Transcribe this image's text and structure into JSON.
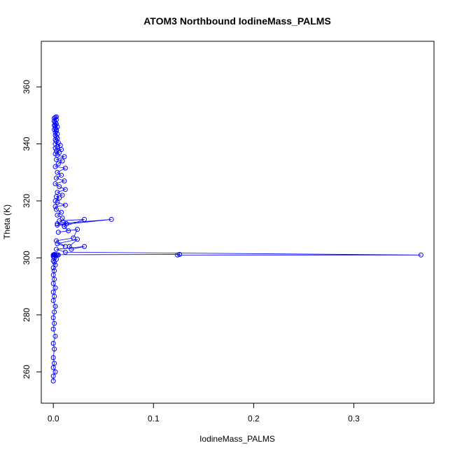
{
  "chart_data": {
    "type": "scatter",
    "title": "ATOM3 Northbound IodineMass_PALMS",
    "xlabel": "IodineMass_PALMS",
    "ylabel": "Theta (K)",
    "xlim": [
      -0.012,
      0.38
    ],
    "ylim": [
      249,
      376
    ],
    "x_ticks": [
      0,
      0.1,
      0.2,
      0.3
    ],
    "x_tick_labels": [
      "0.0",
      "0.1",
      "0.2",
      "0.3"
    ],
    "y_ticks": [
      260,
      280,
      300,
      320,
      340,
      360
    ],
    "y_tick_labels": [
      "260",
      "280",
      "300",
      "320",
      "340",
      "360"
    ],
    "grid": false,
    "legend": "none",
    "marker": "open-circle",
    "connected": true,
    "color": "#0000ff",
    "series": [
      {
        "x": [
          0.0,
          0.0,
          0.002,
          0.0,
          0.001,
          0.0,
          0.001,
          0.0,
          0.002,
          0.0,
          0.001,
          0.0,
          0.001,
          0.002,
          0.0,
          0.001,
          0.0,
          0.002,
          0.0,
          0.001,
          0.0,
          0.001,
          0.0,
          0.002,
          0.001,
          0.0,
          0.003,
          0.001,
          0.0,
          0.002,
          0.004,
          0.001,
          0.0,
          0.002,
          0.005,
          0.001,
          0.0,
          0.003,
          0.126,
          0.124,
          0.367,
          0.012,
          0.003,
          0.031,
          0.018,
          0.016,
          0.024,
          0.004,
          0.012,
          0.003,
          0.02,
          0.024,
          0.005,
          0.015,
          0.011,
          0.013,
          0.004,
          0.058,
          0.004,
          0.011,
          0.031,
          0.006,
          0.013,
          0.009,
          0.004,
          0.008,
          0.003,
          0.002,
          0.012,
          0.004,
          0.002,
          0.006,
          0.003,
          0.009,
          0.004,
          0.012,
          0.006,
          0.002,
          0.011,
          0.003,
          0.008,
          0.004,
          0.012,
          0.002,
          0.005,
          0.009,
          0.003,
          0.011,
          0.004,
          0.002,
          0.006,
          0.003,
          0.008,
          0.002,
          0.004,
          0.007,
          0.002,
          0.005,
          0.003,
          0.002,
          0.004,
          0.003,
          0.002,
          0.004,
          0.002,
          0.003,
          0.001,
          0.002,
          0.004,
          0.001,
          0.003,
          0.002,
          0.001,
          0.003,
          0.001,
          0.002,
          0.003,
          0.001,
          0.002,
          0.003
        ],
        "y": [
          256.8,
          258.5,
          260.0,
          261.5,
          263.0,
          265.0,
          268.0,
          270.0,
          272.5,
          275.0,
          277.0,
          279.0,
          281.0,
          283.0,
          285.0,
          286.5,
          288.0,
          289.5,
          291.0,
          292.5,
          294.0,
          295.5,
          296.5,
          297.5,
          298.5,
          299.0,
          299.5,
          300.0,
          300.5,
          300.8,
          301.0,
          301.2,
          301.0,
          300.8,
          301.0,
          300.9,
          301.0,
          301.1,
          301.2,
          301.0,
          301.0,
          302.0,
          303.0,
          304.0,
          303.0,
          304.0,
          306.5,
          305.0,
          304.0,
          306.0,
          307.0,
          310.0,
          309.0,
          309.5,
          311.0,
          312.0,
          311.5,
          313.5,
          312.0,
          311.0,
          313.5,
          313.0,
          312.0,
          314.0,
          315.0,
          316.0,
          317.0,
          318.0,
          318.5,
          319.5,
          320.0,
          321.0,
          321.5,
          322.0,
          323.0,
          324.0,
          325.0,
          326.0,
          327.0,
          328.0,
          329.0,
          330.0,
          331.5,
          332.0,
          333.0,
          334.0,
          334.5,
          335.5,
          336.0,
          336.5,
          337.0,
          337.5,
          338.0,
          338.5,
          339.0,
          339.5,
          340.0,
          340.5,
          341.0,
          341.5,
          342.0,
          342.5,
          343.0,
          343.5,
          344.0,
          344.5,
          345.0,
          345.5,
          346.0,
          346.5,
          347.0,
          347.5,
          348.0,
          348.5,
          349.0,
          349.3,
          349.5,
          348.0,
          346.5,
          345.0
        ]
      }
    ]
  }
}
